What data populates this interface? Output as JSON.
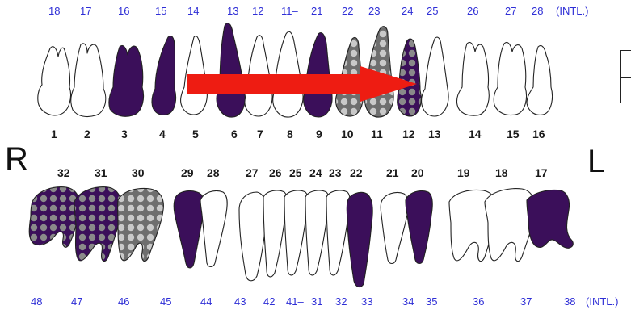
{
  "upper_intl": [
    "18",
    "17",
    "16",
    "15",
    "14",
    "13",
    "12",
    "11–",
    "21",
    "22",
    "23",
    "24",
    "25",
    "26",
    "27",
    "28",
    "(INTL.)"
  ],
  "upper_universal": [
    "1",
    "2",
    "3",
    "4",
    "5",
    "6",
    "7",
    "8",
    "9",
    "10",
    "11",
    "12",
    "13",
    "14",
    "15",
    "16"
  ],
  "lower_universal": [
    "32",
    "31",
    "30",
    "29",
    "28",
    "27",
    "26",
    "25",
    "24",
    "23",
    "22",
    "21",
    "20",
    "19",
    "18",
    "17"
  ],
  "lower_intl": [
    "48",
    "47",
    "46",
    "45",
    "44",
    "43",
    "42",
    "41–",
    "31",
    "32",
    "33",
    "34",
    "35",
    "36",
    "37",
    "38",
    "(INTL.)"
  ],
  "side_labels": {
    "right": "R",
    "left": "L"
  },
  "colors": {
    "filled": "#3b0f5a",
    "arrow": "#ee1c12",
    "outline": "#222222",
    "dotted_bg": "#6e6e6e",
    "intl_text": "#2f2fd6"
  },
  "upper_teeth": [
    {
      "universal": "1",
      "state": "normal"
    },
    {
      "universal": "2",
      "state": "normal"
    },
    {
      "universal": "3",
      "state": "filled"
    },
    {
      "universal": "4",
      "state": "filled"
    },
    {
      "universal": "5",
      "state": "normal"
    },
    {
      "universal": "6",
      "state": "filled"
    },
    {
      "universal": "7",
      "state": "normal"
    },
    {
      "universal": "8",
      "state": "normal"
    },
    {
      "universal": "9",
      "state": "filled"
    },
    {
      "universal": "10",
      "state": "dotted"
    },
    {
      "universal": "11",
      "state": "dotted"
    },
    {
      "universal": "12",
      "state": "dotted-filled"
    },
    {
      "universal": "13",
      "state": "normal"
    },
    {
      "universal": "14",
      "state": "normal"
    },
    {
      "universal": "15",
      "state": "normal"
    },
    {
      "universal": "16",
      "state": "normal"
    }
  ],
  "lower_teeth": [
    {
      "universal": "32",
      "state": "dotted-filled"
    },
    {
      "universal": "31",
      "state": "dotted-filled"
    },
    {
      "universal": "30",
      "state": "dotted"
    },
    {
      "universal": "29",
      "state": "filled"
    },
    {
      "universal": "28",
      "state": "normal"
    },
    {
      "universal": "27",
      "state": "normal"
    },
    {
      "universal": "26",
      "state": "normal"
    },
    {
      "universal": "25",
      "state": "normal"
    },
    {
      "universal": "24",
      "state": "normal"
    },
    {
      "universal": "23",
      "state": "normal"
    },
    {
      "universal": "22",
      "state": "filled"
    },
    {
      "universal": "21",
      "state": "normal"
    },
    {
      "universal": "20",
      "state": "filled"
    },
    {
      "universal": "19",
      "state": "normal"
    },
    {
      "universal": "18",
      "state": "normal"
    },
    {
      "universal": "17",
      "state": "filled"
    }
  ]
}
